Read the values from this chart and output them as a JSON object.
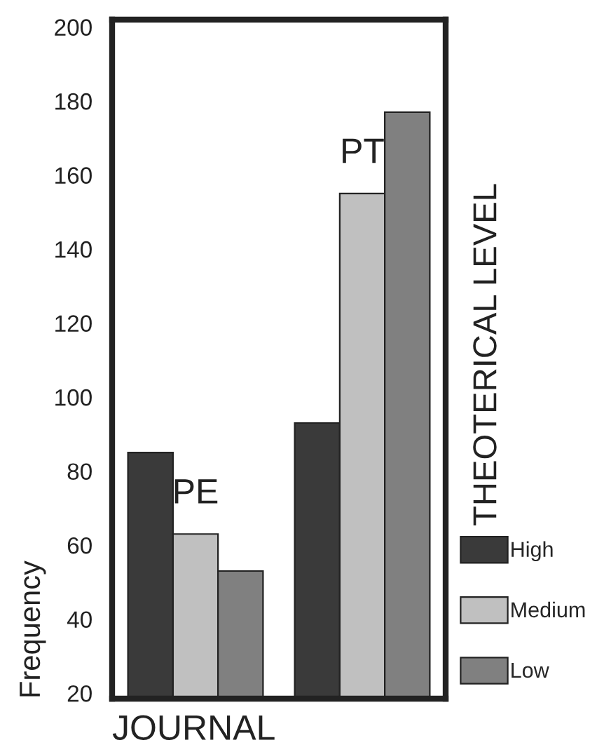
{
  "chart_data": {
    "type": "bar",
    "xlabel": "JOURNAL",
    "ylabel": "Frequency",
    "legend_title": "THEOTERICAL LEVEL",
    "categories": [
      "PE",
      "PT"
    ],
    "series": [
      {
        "name": "High",
        "color": "#3a3a3a",
        "values": [
          85,
          93
        ]
      },
      {
        "name": "Medium",
        "color": "#c0c0c0",
        "values": [
          63,
          155
        ]
      },
      {
        "name": "Low",
        "color": "#808080",
        "values": [
          53,
          177
        ]
      }
    ],
    "ylim": [
      18.5,
      202
    ],
    "yticks": [
      20,
      40,
      60,
      80,
      100,
      120,
      140,
      160,
      180,
      200
    ],
    "grid": false,
    "legend": "right"
  }
}
